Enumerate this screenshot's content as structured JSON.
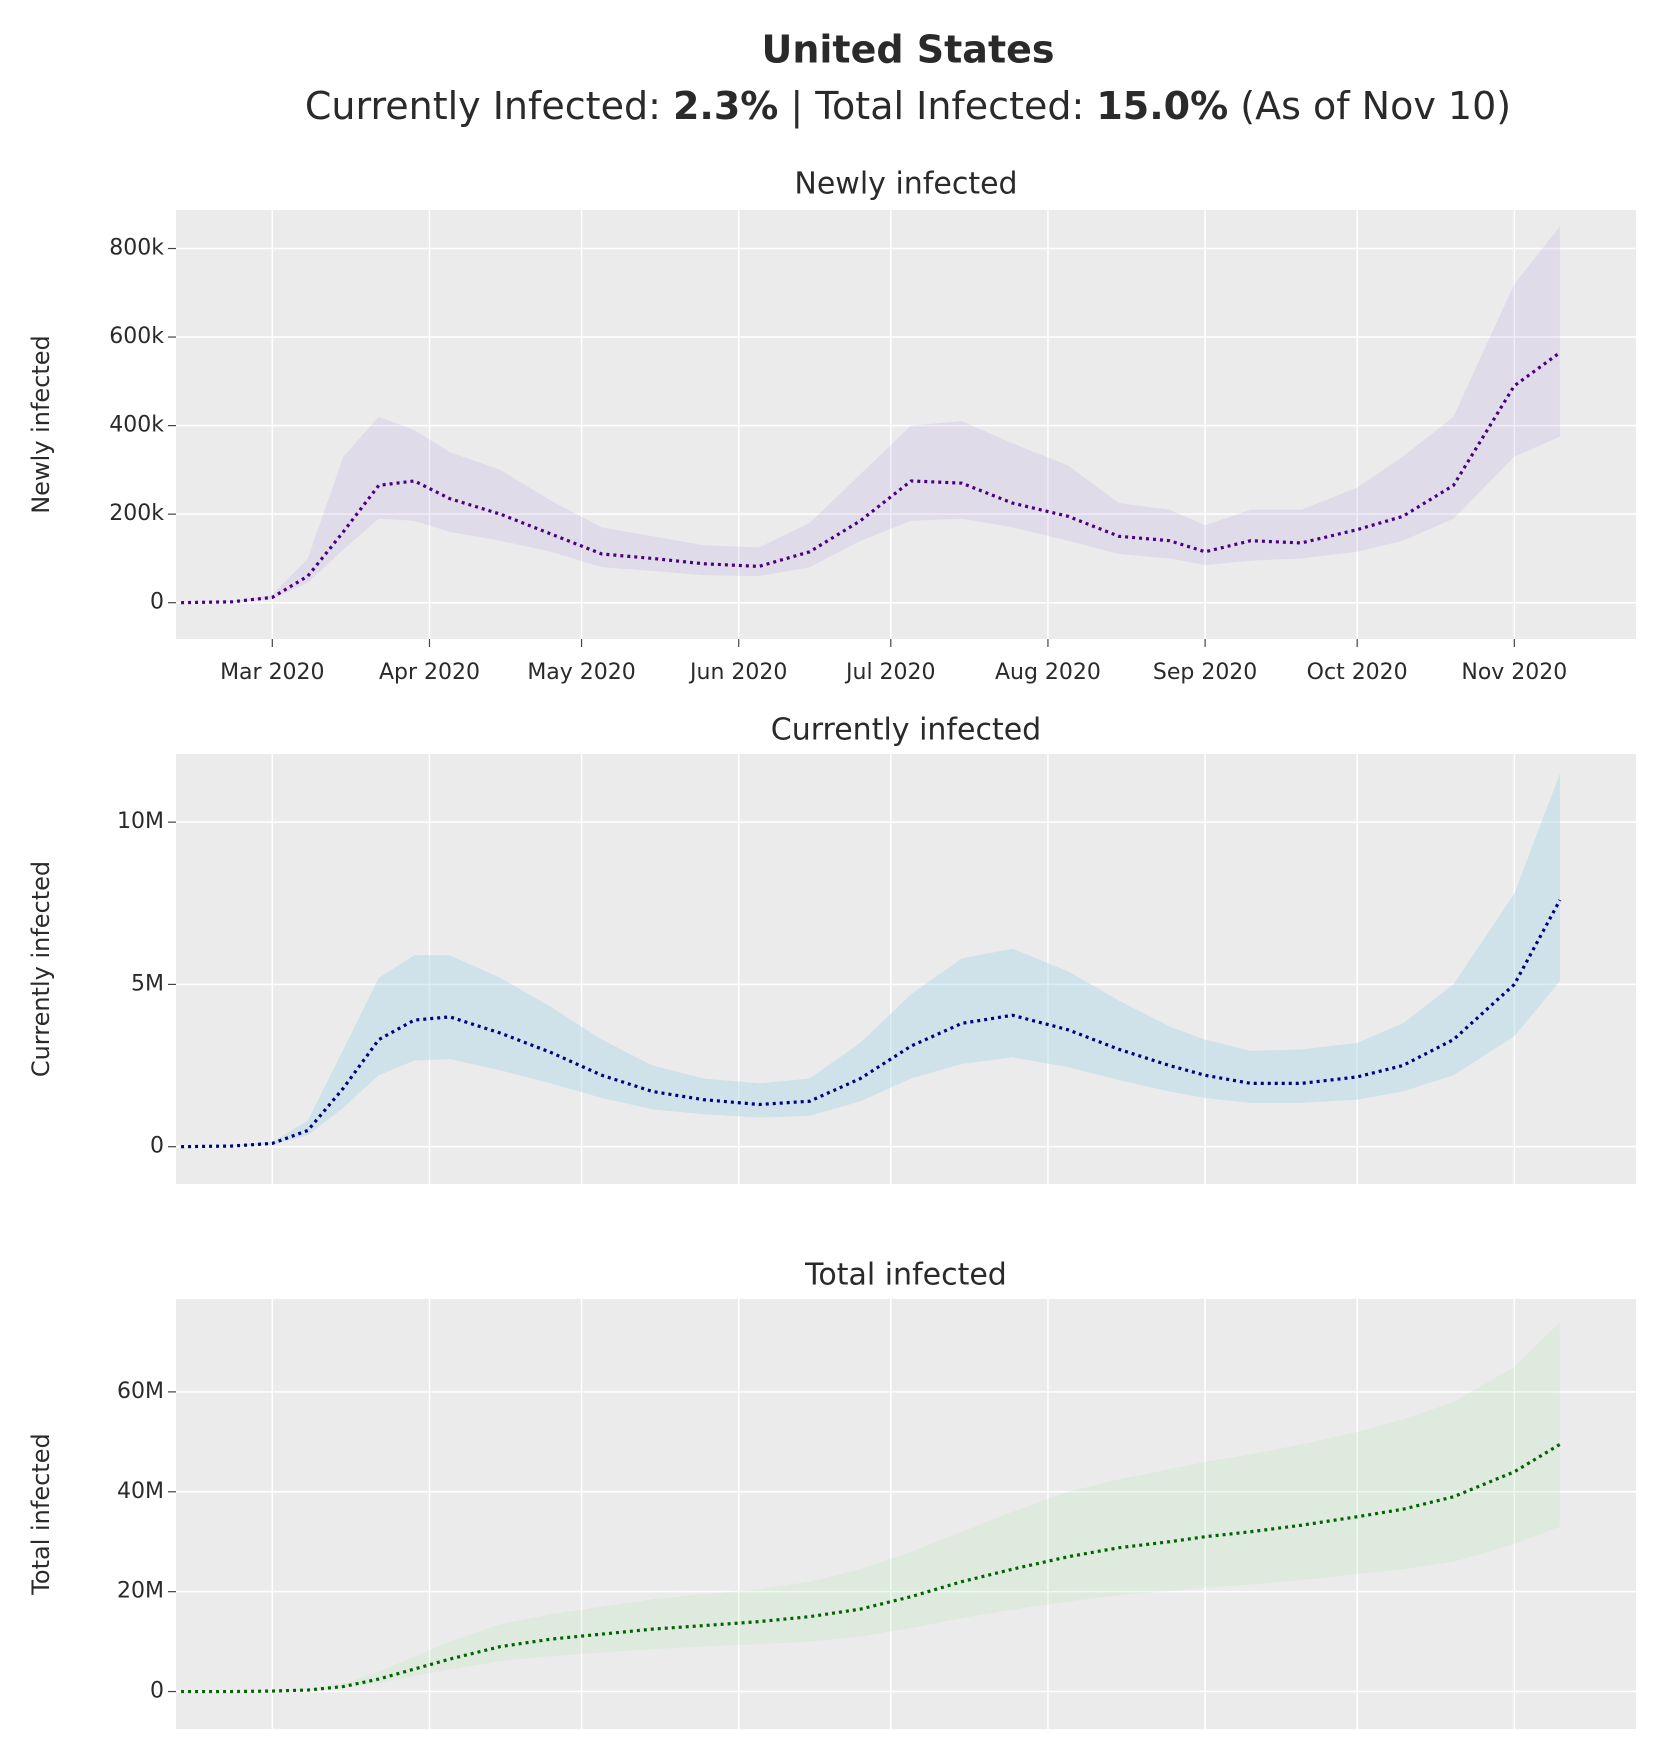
{
  "header": {
    "title": "United States",
    "subtitle": [
      "Currently Infected: ",
      "2.3%",
      " | Total Infected: ",
      "15.0%",
      " (As of Nov 10)"
    ]
  },
  "chart_data": [
    {
      "type": "line",
      "title": "Newly infected",
      "ylabel": "Newly infected",
      "grid": true,
      "show_xtick_labels": true,
      "x": [
        "2020-02-12",
        "2020-02-22",
        "2020-03-01",
        "2020-03-08",
        "2020-03-15",
        "2020-03-22",
        "2020-03-29",
        "2020-04-05",
        "2020-04-15",
        "2020-04-25",
        "2020-05-05",
        "2020-05-15",
        "2020-05-25",
        "2020-06-05",
        "2020-06-15",
        "2020-06-25",
        "2020-07-05",
        "2020-07-15",
        "2020-07-25",
        "2020-08-05",
        "2020-08-15",
        "2020-08-25",
        "2020-09-01",
        "2020-09-10",
        "2020-09-20",
        "2020-10-01",
        "2020-10-10",
        "2020-10-20",
        "2020-11-01",
        "2020-11-10"
      ],
      "xlim": [
        "2020-02-11",
        "2020-11-25"
      ],
      "xticks": [
        {
          "value": "2020-03-01",
          "label": "Mar 2020"
        },
        {
          "value": "2020-04-01",
          "label": "Apr 2020"
        },
        {
          "value": "2020-05-01",
          "label": "May 2020"
        },
        {
          "value": "2020-06-01",
          "label": "Jun 2020"
        },
        {
          "value": "2020-07-01",
          "label": "Jul 2020"
        },
        {
          "value": "2020-08-01",
          "label": "Aug 2020"
        },
        {
          "value": "2020-09-01",
          "label": "Sep 2020"
        },
        {
          "value": "2020-10-01",
          "label": "Oct 2020"
        },
        {
          "value": "2020-11-01",
          "label": "Nov 2020"
        }
      ],
      "ylim": [
        -82000,
        887000
      ],
      "yticks": [
        0,
        {
          "value": 200000,
          "label": "200k"
        },
        {
          "value": 400000,
          "label": "400k"
        },
        {
          "value": 600000,
          "label": "600k"
        },
        {
          "value": 800000,
          "label": "800k"
        }
      ],
      "series": [
        {
          "color": "#4b0082",
          "values": [
            0,
            2000,
            12000,
            60000,
            160000,
            265000,
            275000,
            235000,
            200000,
            155000,
            110000,
            100000,
            88000,
            82000,
            115000,
            185000,
            275000,
            270000,
            225000,
            195000,
            150000,
            140000,
            115000,
            140000,
            135000,
            165000,
            195000,
            265000,
            490000,
            565000
          ]
        }
      ],
      "band_color": "rgba(170,150,230,0.18)",
      "band_upper": [
        0,
        3000,
        18000,
        100000,
        330000,
        420000,
        390000,
        340000,
        300000,
        230000,
        170000,
        150000,
        130000,
        125000,
        180000,
        290000,
        400000,
        410000,
        360000,
        310000,
        225000,
        210000,
        175000,
        210000,
        210000,
        260000,
        330000,
        420000,
        720000,
        850000
      ],
      "band_lower": [
        0,
        1000,
        8000,
        45000,
        120000,
        190000,
        185000,
        160000,
        140000,
        115000,
        80000,
        72000,
        62000,
        60000,
        80000,
        140000,
        185000,
        190000,
        170000,
        140000,
        110000,
        100000,
        85000,
        95000,
        100000,
        115000,
        140000,
        190000,
        330000,
        375000
      ]
    },
    {
      "type": "line",
      "title": "Currently infected",
      "ylabel": "Currently infected",
      "grid": true,
      "show_xtick_labels": false,
      "x": [
        "2020-02-12",
        "2020-02-22",
        "2020-03-01",
        "2020-03-08",
        "2020-03-15",
        "2020-03-22",
        "2020-03-29",
        "2020-04-05",
        "2020-04-15",
        "2020-04-25",
        "2020-05-05",
        "2020-05-15",
        "2020-05-25",
        "2020-06-05",
        "2020-06-15",
        "2020-06-25",
        "2020-07-05",
        "2020-07-15",
        "2020-07-25",
        "2020-08-05",
        "2020-08-15",
        "2020-08-25",
        "2020-09-01",
        "2020-09-10",
        "2020-09-20",
        "2020-10-01",
        "2020-10-10",
        "2020-10-20",
        "2020-11-01",
        "2020-11-10"
      ],
      "xlim": [
        "2020-02-11",
        "2020-11-25"
      ],
      "xticks": [
        "2020-03-01",
        "2020-04-01",
        "2020-05-01",
        "2020-06-01",
        "2020-07-01",
        "2020-08-01",
        "2020-09-01",
        "2020-10-01",
        "2020-11-01"
      ],
      "ylim": [
        -1150000,
        12100000
      ],
      "yticks": [
        0,
        {
          "value": 5000000,
          "label": "5M"
        },
        {
          "value": 10000000,
          "label": "10M"
        }
      ],
      "series": [
        {
          "color": "#000080",
          "values": [
            0,
            20000,
            100000,
            500000,
            1800000,
            3300000,
            3900000,
            4000000,
            3500000,
            2900000,
            2200000,
            1700000,
            1450000,
            1300000,
            1400000,
            2100000,
            3100000,
            3800000,
            4050000,
            3600000,
            3000000,
            2500000,
            2200000,
            1950000,
            1950000,
            2150000,
            2500000,
            3300000,
            5000000,
            7600000
          ]
        }
      ],
      "band_color": "rgba(173,216,230,0.45)",
      "band_upper": [
        0,
        30000,
        150000,
        800000,
        3000000,
        5200000,
        5900000,
        5900000,
        5200000,
        4300000,
        3300000,
        2500000,
        2100000,
        1950000,
        2100000,
        3200000,
        4700000,
        5800000,
        6100000,
        5400000,
        4500000,
        3700000,
        3300000,
        2950000,
        3000000,
        3200000,
        3800000,
        5000000,
        7800000,
        11500000
      ],
      "band_lower": [
        0,
        10000,
        70000,
        350000,
        1200000,
        2200000,
        2650000,
        2700000,
        2350000,
        1950000,
        1500000,
        1150000,
        1000000,
        900000,
        950000,
        1400000,
        2100000,
        2550000,
        2750000,
        2450000,
        2050000,
        1700000,
        1500000,
        1350000,
        1350000,
        1450000,
        1700000,
        2200000,
        3400000,
        5100000
      ]
    },
    {
      "type": "line",
      "title": "Total infected",
      "ylabel": "Total infected",
      "grid": true,
      "show_xtick_labels": false,
      "x": [
        "2020-02-12",
        "2020-02-22",
        "2020-03-01",
        "2020-03-08",
        "2020-03-15",
        "2020-03-22",
        "2020-03-29",
        "2020-04-05",
        "2020-04-15",
        "2020-04-25",
        "2020-05-05",
        "2020-05-15",
        "2020-05-25",
        "2020-06-05",
        "2020-06-15",
        "2020-06-25",
        "2020-07-05",
        "2020-07-15",
        "2020-07-25",
        "2020-08-05",
        "2020-08-15",
        "2020-08-25",
        "2020-09-01",
        "2020-09-10",
        "2020-09-20",
        "2020-10-01",
        "2020-10-10",
        "2020-10-20",
        "2020-11-01",
        "2020-11-10"
      ],
      "xlim": [
        "2020-02-11",
        "2020-11-25"
      ],
      "xticks": [
        "2020-03-01",
        "2020-04-01",
        "2020-05-01",
        "2020-06-01",
        "2020-07-01",
        "2020-08-01",
        "2020-09-01",
        "2020-10-01",
        "2020-11-01"
      ],
      "ylim": [
        -7500000,
        78600000
      ],
      "yticks": [
        0,
        {
          "value": 20000000,
          "label": "20M"
        },
        {
          "value": 40000000,
          "label": "40M"
        },
        {
          "value": 60000000,
          "label": "60M"
        }
      ],
      "series": [
        {
          "color": "#006400",
          "values": [
            0,
            0,
            100000,
            300000,
            1000000,
            2500000,
            4500000,
            6500000,
            9000000,
            10500000,
            11500000,
            12500000,
            13200000,
            14000000,
            15000000,
            16500000,
            19000000,
            22000000,
            24500000,
            27000000,
            28800000,
            30000000,
            31000000,
            32000000,
            33300000,
            35000000,
            36500000,
            39000000,
            44000000,
            49500000
          ]
        }
      ],
      "band_color": "rgba(180,230,180,0.22)",
      "band_upper": [
        0,
        0,
        150000,
        500000,
        1600000,
        4000000,
        7000000,
        10000000,
        13500000,
        15500000,
        17000000,
        18500000,
        19500000,
        20500000,
        22000000,
        24500000,
        28000000,
        32000000,
        36000000,
        40000000,
        42500000,
        44500000,
        46000000,
        47500000,
        49500000,
        52000000,
        54500000,
        58000000,
        65000000,
        74000000
      ],
      "band_lower": [
        0,
        0,
        70000,
        200000,
        700000,
        1700000,
        3100000,
        4400000,
        6100000,
        7100000,
        7800000,
        8500000,
        9000000,
        9500000,
        10000000,
        11000000,
        12700000,
        14700000,
        16400000,
        18000000,
        19300000,
        20100000,
        20800000,
        21400000,
        22300000,
        23500000,
        24500000,
        26000000,
        29500000,
        33000000
      ]
    }
  ]
}
